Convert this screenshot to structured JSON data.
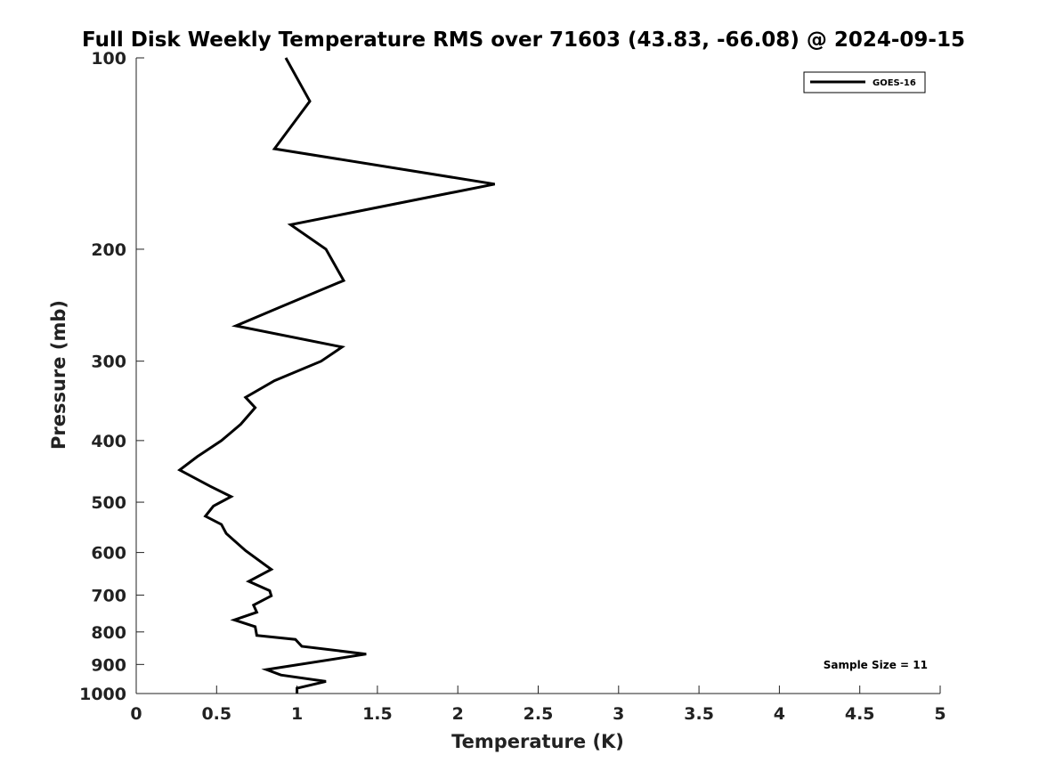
{
  "chart_data": {
    "type": "line",
    "title": "Full Disk Weekly Temperature RMS over 71603 (43.83, -66.08) @ 2024-09-15",
    "xlabel": "Temperature (K)",
    "ylabel": "Pressure (mb)",
    "xlim": [
      0,
      5
    ],
    "ylim": [
      100,
      1000
    ],
    "y_scale": "log",
    "y_reversed": true,
    "x_ticks": [
      "0",
      "0.5",
      "1",
      "1.5",
      "2",
      "2.5",
      "3",
      "3.5",
      "4",
      "4.5",
      "5"
    ],
    "y_ticks": [
      "100",
      "200",
      "300",
      "400",
      "500",
      "600",
      "700",
      "800",
      "900",
      "1000"
    ],
    "grid": false,
    "legend_position": "top-right",
    "annotation": "Sample Size = 11",
    "series": [
      {
        "name": "GOES-16",
        "color": "#000000",
        "points": [
          [
            0.93,
            100
          ],
          [
            1.08,
            117
          ],
          [
            0.86,
            139
          ],
          [
            2.23,
            158
          ],
          [
            0.96,
            183
          ],
          [
            1.18,
            200
          ],
          [
            1.29,
            224
          ],
          [
            0.89,
            247
          ],
          [
            0.62,
            264
          ],
          [
            1.28,
            285
          ],
          [
            1.15,
            300
          ],
          [
            0.86,
            322
          ],
          [
            0.68,
            342
          ],
          [
            0.74,
            355
          ],
          [
            0.65,
            377
          ],
          [
            0.53,
            400
          ],
          [
            0.38,
            424
          ],
          [
            0.27,
            445
          ],
          [
            0.46,
            472
          ],
          [
            0.59,
            490
          ],
          [
            0.48,
            507
          ],
          [
            0.43,
            526
          ],
          [
            0.53,
            542
          ],
          [
            0.56,
            560
          ],
          [
            0.68,
            596
          ],
          [
            0.84,
            638
          ],
          [
            0.7,
            666
          ],
          [
            0.83,
            689
          ],
          [
            0.84,
            702
          ],
          [
            0.73,
            726
          ],
          [
            0.75,
            745
          ],
          [
            0.61,
            766
          ],
          [
            0.74,
            785
          ],
          [
            0.75,
            810
          ],
          [
            0.99,
            822
          ],
          [
            1.03,
            843
          ],
          [
            1.43,
            867
          ],
          [
            0.81,
            917
          ],
          [
            0.9,
            935
          ],
          [
            1.18,
            957
          ],
          [
            1.0,
            981
          ],
          [
            1.0,
            1000
          ]
        ]
      }
    ]
  }
}
